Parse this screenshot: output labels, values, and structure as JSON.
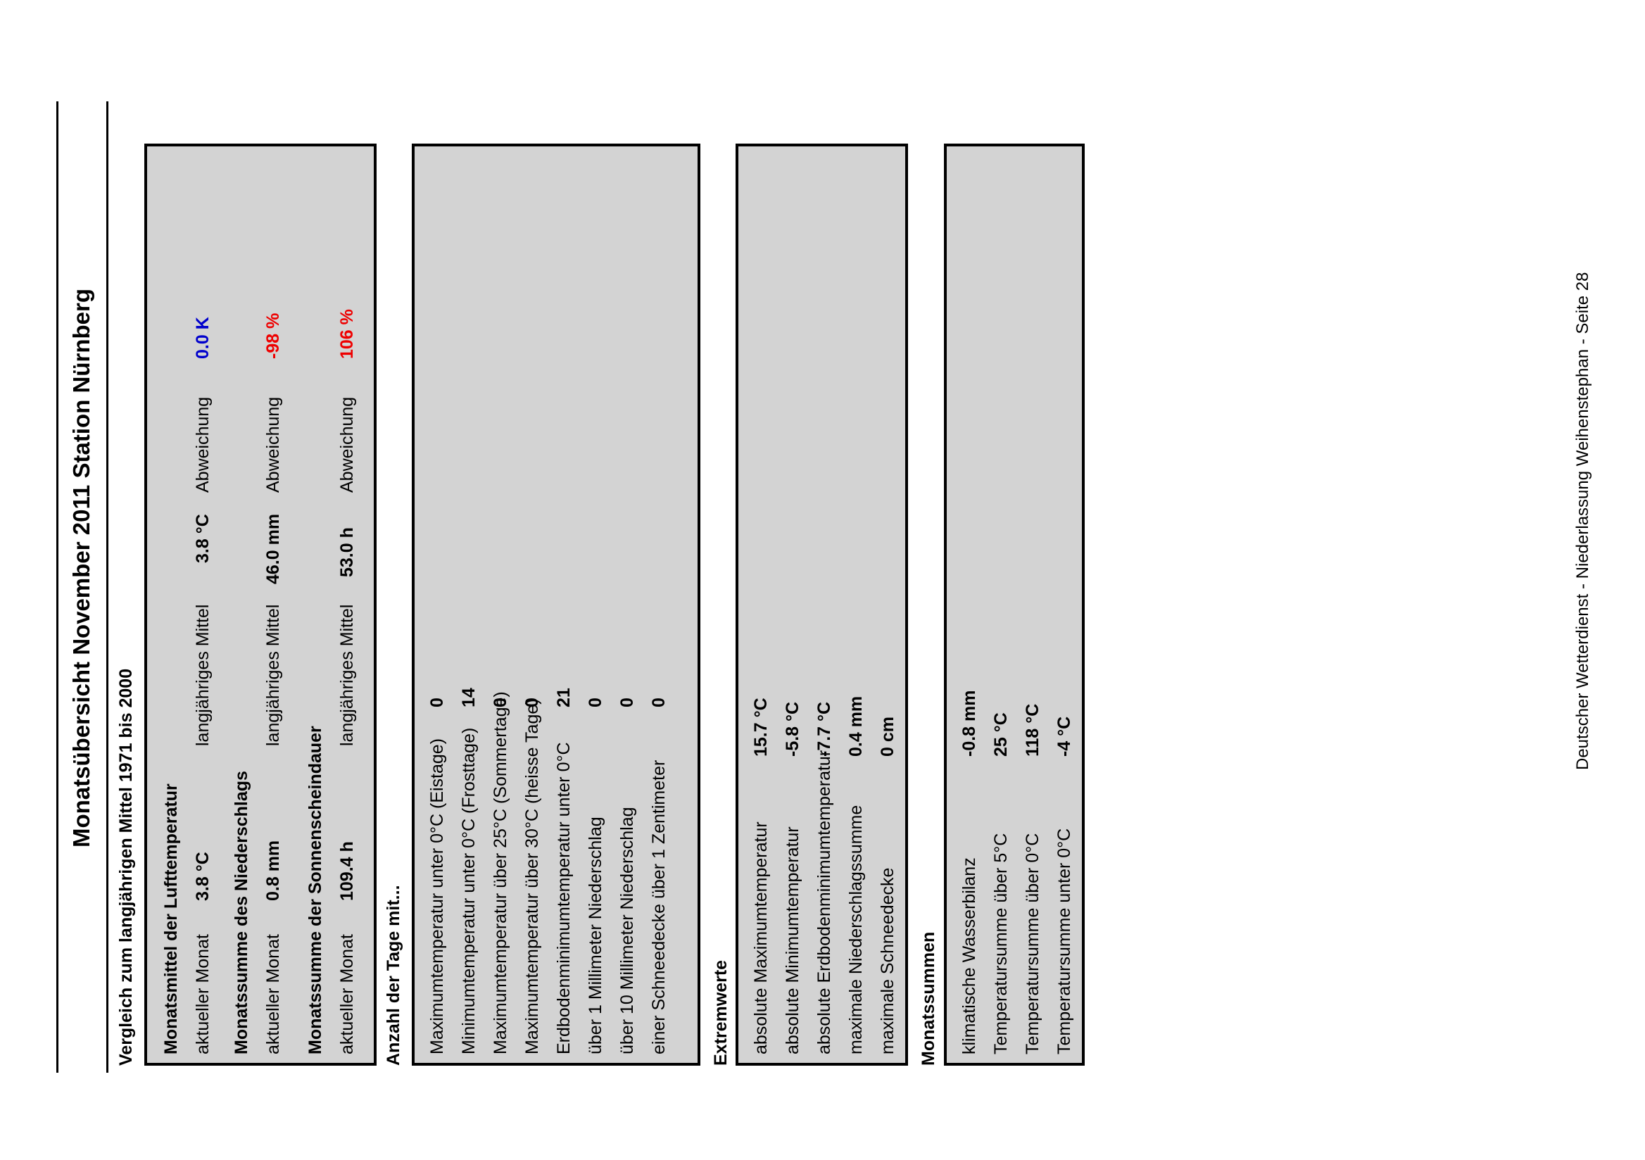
{
  "title": "Monatsübersicht November 2011 Station Nürnberg",
  "subtitle": "Vergleich zum langjährigen Mittel 1971 bis 2000",
  "comparison": [
    {
      "heading": "Monatsmittel der Lufttemperatur",
      "current_label": "aktueller Monat",
      "current_value": "3.8 °C",
      "mean_label": "langjähriges Mittel",
      "mean_value": "3.8 °C",
      "dev_label": "Abweichung",
      "dev_value": "0.0  K",
      "dev_color": "#0000cc"
    },
    {
      "heading": "Monatssumme des Niederschlags",
      "current_label": "aktueller Monat",
      "current_value": "0.8 mm",
      "mean_label": "langjähriges Mittel",
      "mean_value": "46.0 mm",
      "dev_label": "Abweichung",
      "dev_value": "-98 %",
      "dev_color": "#ee0000"
    },
    {
      "heading": "Monatssumme der Sonnenscheindauer",
      "current_label": "aktueller Monat",
      "current_value": "109.4 h",
      "mean_label": "langjähriges Mittel",
      "mean_value": "53.0 h",
      "dev_label": "Abweichung",
      "dev_value": "106 %",
      "dev_color": "#ee0000"
    }
  ],
  "days": {
    "heading": "Anzahl der Tage mit...",
    "rows": [
      {
        "label": "Maximumtemperatur unter 0°C (Eistage)",
        "value": "0"
      },
      {
        "label": "Minimumtemperatur unter 0°C (Frosttage)",
        "value": "14"
      },
      {
        "label": "Maximumtemperatur über 25°C (Sommertage)",
        "value": "0"
      },
      {
        "label": "Maximumtemperatur über 30°C (heisse Tage)",
        "value": "0"
      },
      {
        "label": "Erdbodenminimumtemperatur unter 0°C",
        "value": "21"
      },
      {
        "label": "über 1 Millimeter Niederschlag",
        "value": "0"
      },
      {
        "label": "über 10 Millimeter Niederschlag",
        "value": "0"
      },
      {
        "label": "einer Schneedecke über 1 Zentimeter",
        "value": "0"
      }
    ]
  },
  "extremes": {
    "heading": "Extremwerte",
    "rows": [
      {
        "label": "absolute Maximumtemperatur",
        "value": "15.7  °C"
      },
      {
        "label": "absolute Minimumtemperatur",
        "value": "-5.8  °C"
      },
      {
        "label": "absolute Erdbodenminimumtemperatur",
        "value": "-7.7  °C"
      },
      {
        "label": "maximale Niederschlagssumme",
        "value": "0.4  mm"
      },
      {
        "label": "maximale Schneedecke",
        "value": "0 cm"
      }
    ]
  },
  "sums": {
    "heading": "Monatssummen",
    "rows": [
      {
        "label": "klimatische Wasserbilanz",
        "value": "-0.8  mm"
      },
      {
        "label": "Temperatursumme über 5°C",
        "value": "25  °C"
      },
      {
        "label": "Temperatursumme über 0°C",
        "value": "118  °C"
      },
      {
        "label": "Temperatursumme unter 0°C",
        "value": "-4  °C"
      }
    ]
  },
  "footer": "Deutscher Wetterdienst - Niederlassung Weihenstephan - Seite 28"
}
